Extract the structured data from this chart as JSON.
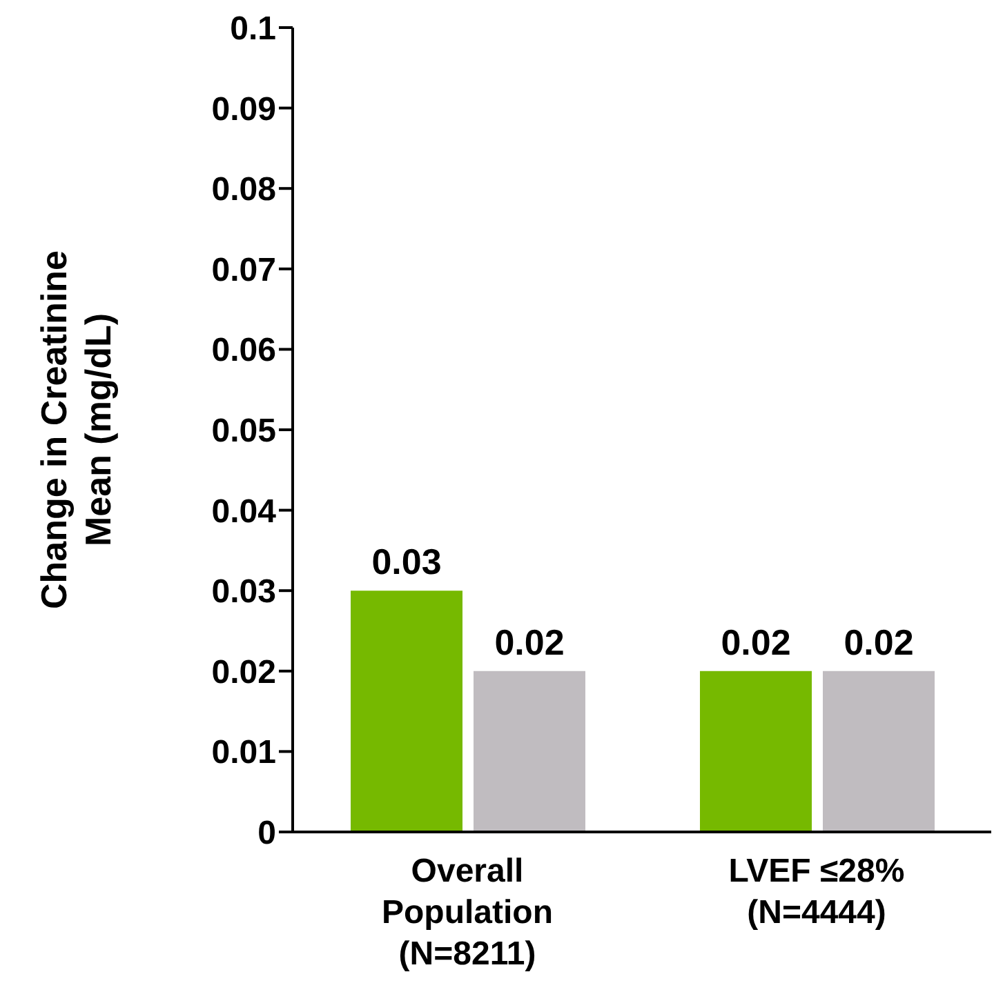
{
  "chart_data": {
    "type": "bar",
    "ylabel": "Change in Creatinine Mean (mg/dL)",
    "categories": [
      "Overall Population (N=8211)",
      "LVEF ≤28% (N=4444)"
    ],
    "series": [
      {
        "color": "#76b900",
        "values": [
          0.03,
          0.02
        ]
      },
      {
        "color": "#c0bcc0",
        "values": [
          0.02,
          0.02
        ]
      }
    ],
    "ylim": [
      0,
      0.1
    ],
    "yticks": [
      0,
      0.01,
      0.02,
      0.03,
      0.04,
      0.05,
      0.06,
      0.07,
      0.08,
      0.09,
      0.1
    ],
    "data_labels": true,
    "grid": false,
    "legend": false
  }
}
